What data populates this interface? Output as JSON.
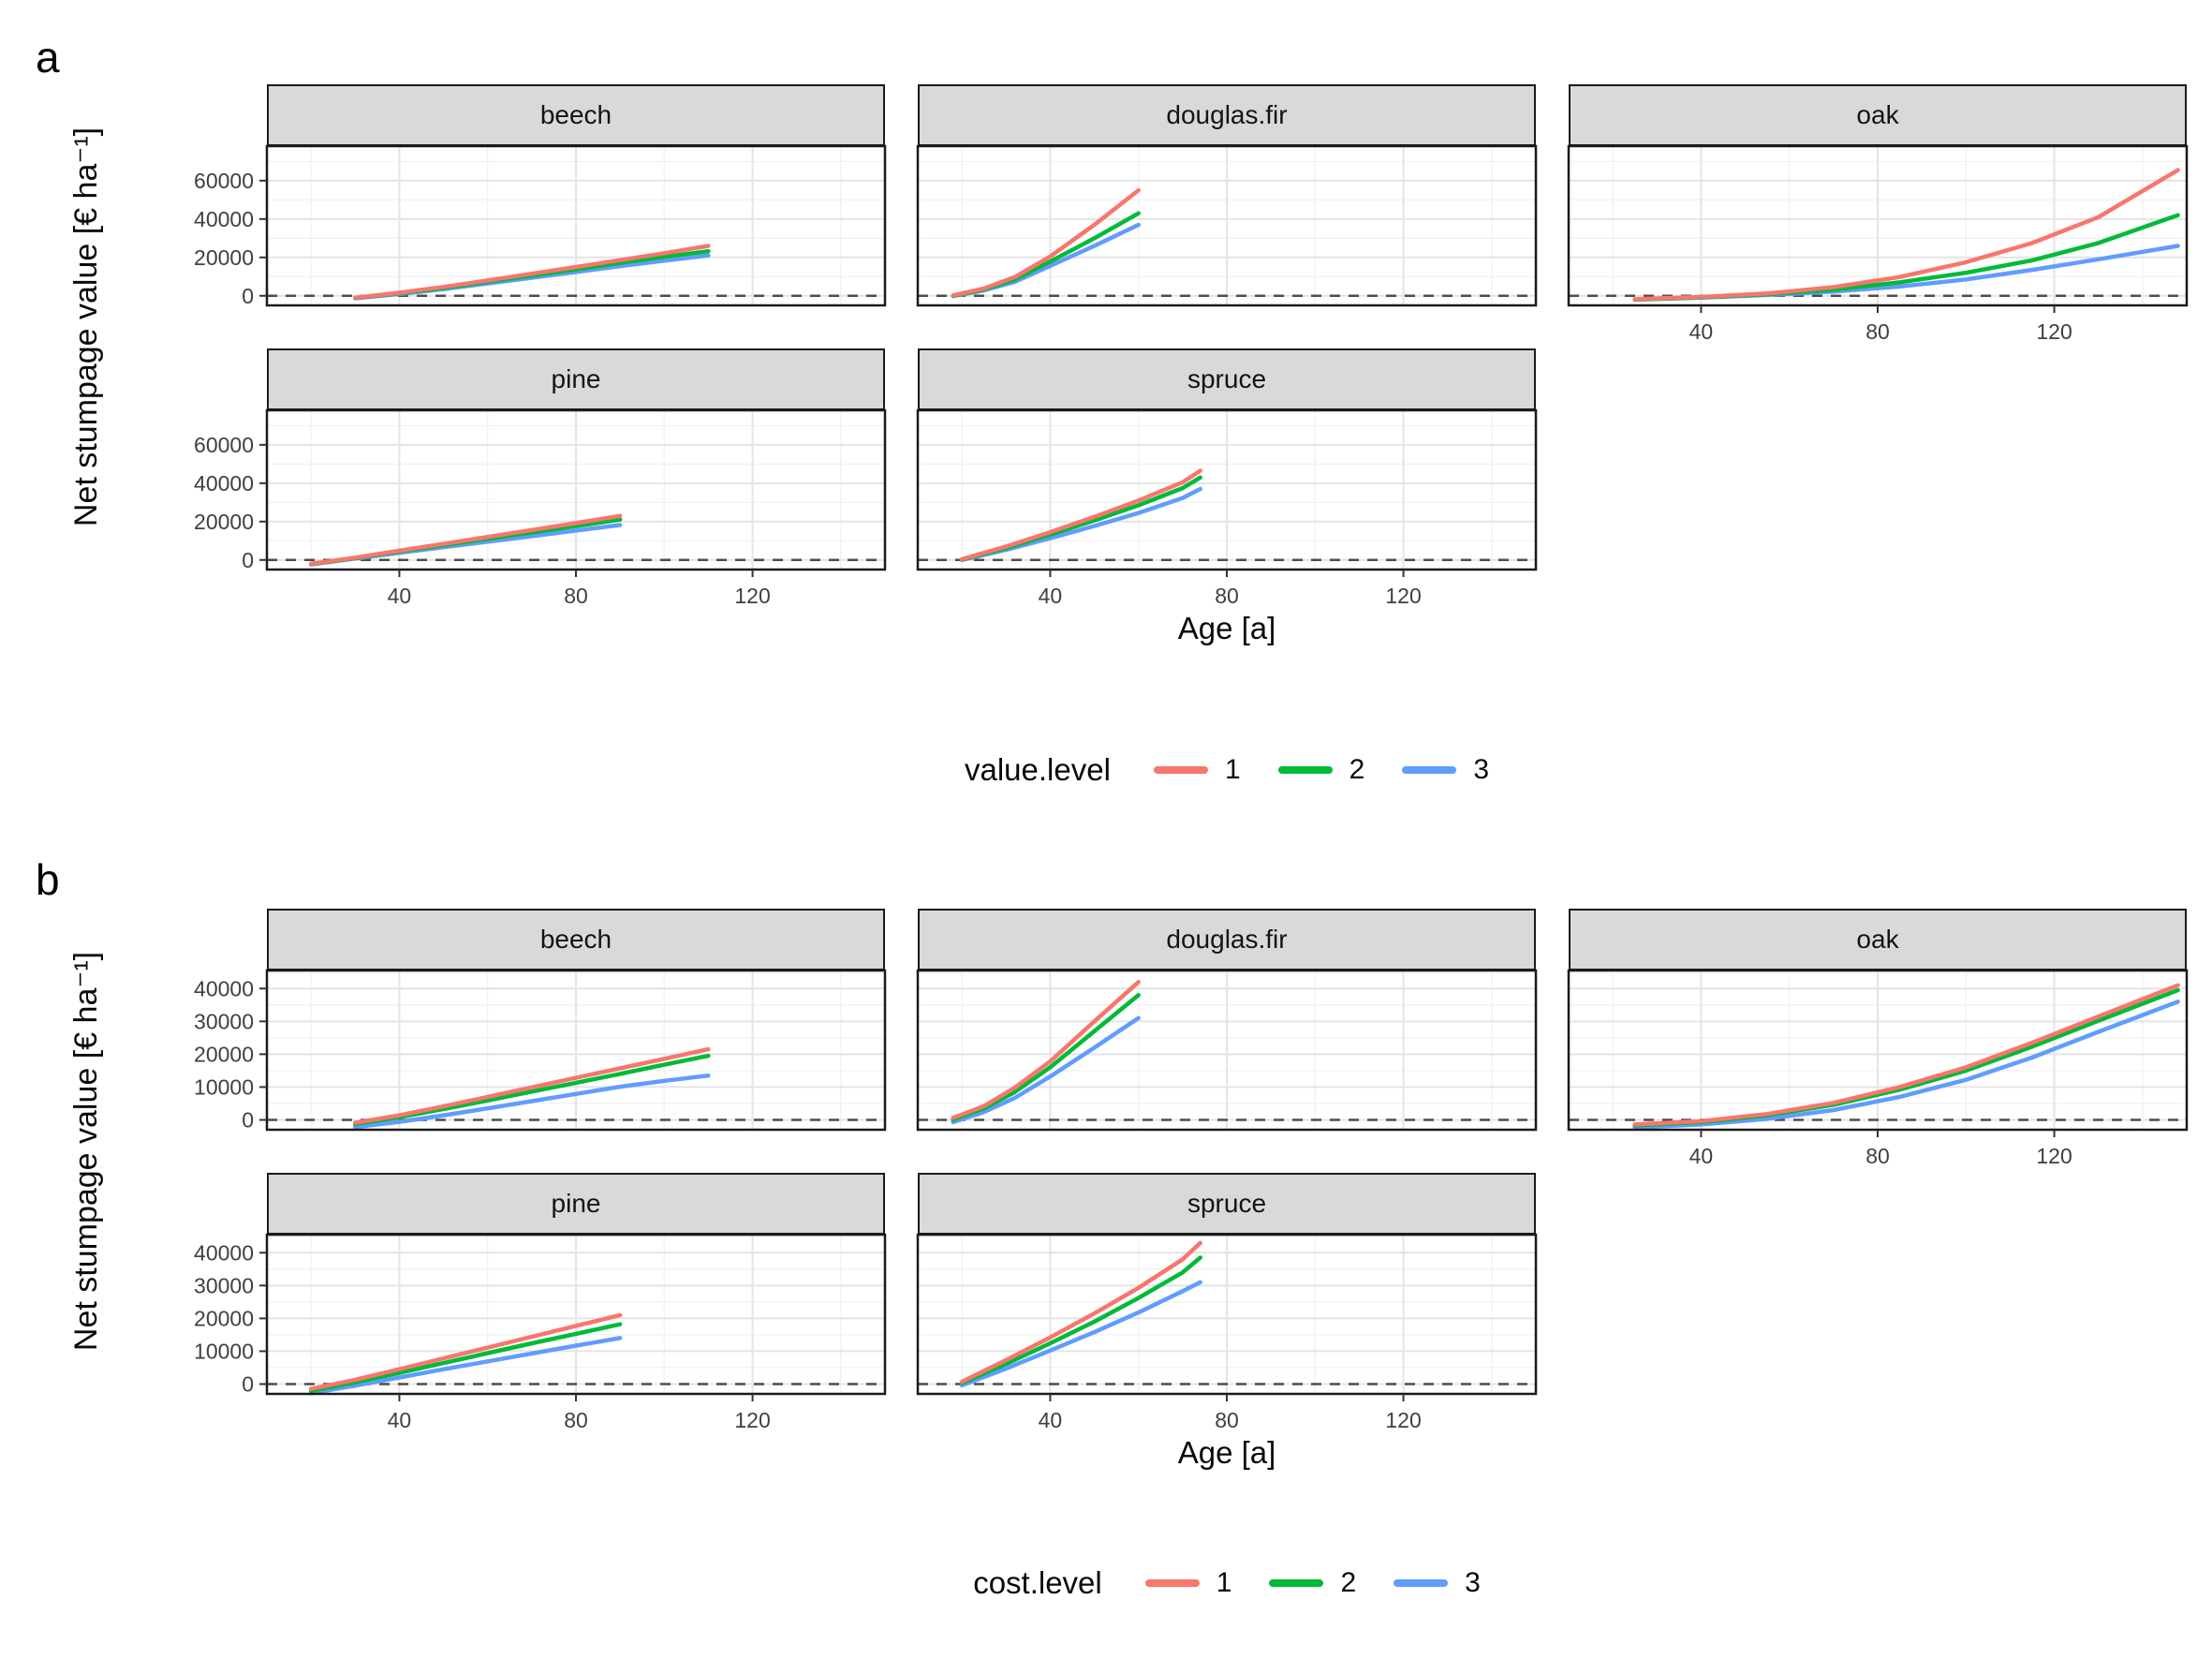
{
  "style": {
    "background": "#FFFFFF",
    "strip_bg": "#D9D9D9",
    "panel_border": "#1A1A1A",
    "grid_major": "#E4E4E4",
    "grid_minor": "#F1F1F1",
    "zero_line": "#4D4D4D",
    "tick_mark": "#333333",
    "tick_label": "#404040"
  },
  "chart_data": [
    {
      "type": "line",
      "tag": "a",
      "xlabel": "Age [a]",
      "ylabel": "Net stumpage value [€ ha⁻¹]",
      "legend": {
        "title": "value.level",
        "position": "bottom",
        "entries": [
          {
            "label": "1",
            "color": "#F8766D"
          },
          {
            "label": "2",
            "color": "#00BA38"
          },
          {
            "label": "3",
            "color": "#619CFF"
          }
        ]
      },
      "xlim": [
        10,
        150
      ],
      "ylim": [
        -5000,
        78000
      ],
      "xticks": [
        40,
        80,
        120
      ],
      "yticks": [
        0,
        20000,
        40000,
        60000
      ],
      "grid": true,
      "zero_dashed_line": 0,
      "facets": [
        {
          "name": "beech",
          "show_y_axis": true,
          "show_x_axis": false,
          "x": [
            30,
            40,
            50,
            60,
            70,
            80,
            90,
            100,
            110
          ],
          "series": [
            {
              "name": "1",
              "y": [
                -1000,
                1600,
                4600,
                8000,
                11500,
                15000,
                18600,
                22200,
                26000
              ]
            },
            {
              "name": "2",
              "y": [
                -1100,
                1300,
                4100,
                7300,
                10500,
                13800,
                17100,
                20300,
                23200
              ]
            },
            {
              "name": "3",
              "y": [
                -1300,
                900,
                3500,
                6400,
                9400,
                12400,
                15400,
                18300,
                21000
              ]
            }
          ]
        },
        {
          "name": "douglas.fir",
          "show_y_axis": false,
          "show_x_axis": false,
          "x": [
            18,
            25,
            32,
            40,
            50,
            60
          ],
          "series": [
            {
              "name": "1",
              "y": [
                200,
                3800,
                9800,
                20500,
                37000,
                55000
              ]
            },
            {
              "name": "2",
              "y": [
                0,
                3300,
                8500,
                17800,
                30000,
                43000
              ]
            },
            {
              "name": "3",
              "y": [
                -200,
                2800,
                7300,
                15600,
                26000,
                37000
              ]
            }
          ]
        },
        {
          "name": "oak",
          "show_y_axis": false,
          "show_x_axis": true,
          "x": [
            25,
            40,
            55,
            70,
            85,
            100,
            115,
            130,
            148
          ],
          "series": [
            {
              "name": "1",
              "y": [
                -1800,
                -600,
                1200,
                4500,
                9800,
                17500,
                27500,
                41000,
                65500
              ]
            },
            {
              "name": "2",
              "y": [
                -1900,
                -800,
                800,
                3200,
                7000,
                12000,
                18500,
                27500,
                42000
              ]
            },
            {
              "name": "3",
              "y": [
                -2000,
                -1000,
                400,
                2200,
                4800,
                8500,
                13500,
                19000,
                26000
              ]
            }
          ]
        },
        {
          "name": "pine",
          "show_y_axis": true,
          "show_x_axis": true,
          "x": [
            20,
            30,
            40,
            50,
            60,
            70,
            80,
            90
          ],
          "series": [
            {
              "name": "1",
              "y": [
                -2000,
                1200,
                4800,
                8400,
                12000,
                15600,
                19200,
                23000
              ]
            },
            {
              "name": "2",
              "y": [
                -2100,
                1000,
                4400,
                7700,
                11000,
                14300,
                17600,
                21000
              ]
            },
            {
              "name": "3",
              "y": [
                -2300,
                700,
                3700,
                6600,
                9500,
                12400,
                15300,
                18200
              ]
            }
          ]
        },
        {
          "name": "spruce",
          "show_y_axis": false,
          "show_x_axis": true,
          "x": [
            20,
            30,
            40,
            50,
            60,
            70,
            74
          ],
          "series": [
            {
              "name": "1",
              "y": [
                400,
                7000,
                14500,
                22500,
                31000,
                40500,
                46500
              ]
            },
            {
              "name": "2",
              "y": [
                200,
                6200,
                13200,
                20600,
                28500,
                37500,
                43000
              ]
            },
            {
              "name": "3",
              "y": [
                0,
                5300,
                11300,
                17700,
                24500,
                32300,
                37000
              ]
            }
          ]
        }
      ]
    },
    {
      "type": "line",
      "tag": "b",
      "xlabel": "Age [a]",
      "ylabel": "Net stumpage value [€ ha⁻¹]",
      "legend": {
        "title": "cost.level",
        "position": "bottom",
        "entries": [
          {
            "label": "1",
            "color": "#F8766D"
          },
          {
            "label": "2",
            "color": "#00BA38"
          },
          {
            "label": "3",
            "color": "#619CFF"
          }
        ]
      },
      "xlim": [
        10,
        150
      ],
      "ylim": [
        -3000,
        45500
      ],
      "xticks": [
        40,
        80,
        120
      ],
      "yticks": [
        0,
        10000,
        20000,
        30000,
        40000
      ],
      "grid": true,
      "zero_dashed_line": 0,
      "facets": [
        {
          "name": "beech",
          "show_y_axis": true,
          "show_x_axis": false,
          "x": [
            30,
            40,
            50,
            60,
            70,
            80,
            90,
            100,
            110
          ],
          "series": [
            {
              "name": "1",
              "y": [
                -900,
                1400,
                4100,
                7000,
                9900,
                12800,
                15700,
                18600,
                21500
              ]
            },
            {
              "name": "2",
              "y": [
                -1300,
                800,
                3300,
                5900,
                8600,
                11300,
                14000,
                16800,
                19500
              ]
            },
            {
              "name": "3",
              "y": [
                -2200,
                -600,
                1400,
                3500,
                5700,
                7900,
                10100,
                11900,
                13500
              ]
            }
          ]
        },
        {
          "name": "douglas.fir",
          "show_y_axis": false,
          "show_x_axis": false,
          "x": [
            18,
            25,
            32,
            40,
            50,
            60
          ],
          "series": [
            {
              "name": "1",
              "y": [
                600,
                4200,
                9800,
                17800,
                30000,
                42000
              ]
            },
            {
              "name": "2",
              "y": [
                100,
                3500,
                8500,
                16000,
                27000,
                38000
              ]
            },
            {
              "name": "3",
              "y": [
                -700,
                2400,
                6700,
                13200,
                22000,
                31000
              ]
            }
          ]
        },
        {
          "name": "oak",
          "show_y_axis": false,
          "show_x_axis": true,
          "x": [
            25,
            40,
            55,
            70,
            85,
            100,
            115,
            130,
            148
          ],
          "series": [
            {
              "name": "1",
              "y": [
                -1400,
                -400,
                1800,
                5200,
                10000,
                16000,
                23500,
                31500,
                41000
              ]
            },
            {
              "name": "2",
              "y": [
                -1700,
                -700,
                1400,
                4600,
                9200,
                15000,
                22300,
                30200,
                39500
              ]
            },
            {
              "name": "3",
              "y": [
                -2300,
                -1400,
                300,
                3000,
                7000,
                12200,
                19000,
                26800,
                36000
              ]
            }
          ]
        },
        {
          "name": "pine",
          "show_y_axis": true,
          "show_x_axis": true,
          "x": [
            20,
            30,
            40,
            50,
            60,
            70,
            80,
            90
          ],
          "series": [
            {
              "name": "1",
              "y": [
                -1500,
                1300,
                4500,
                7800,
                11100,
                14400,
                17700,
                21000
              ]
            },
            {
              "name": "2",
              "y": [
                -2100,
                500,
                3400,
                6400,
                9400,
                12400,
                15300,
                18200
              ]
            },
            {
              "name": "3",
              "y": [
                -2800,
                -500,
                2000,
                4500,
                6900,
                9300,
                11700,
                14000
              ]
            }
          ]
        },
        {
          "name": "spruce",
          "show_y_axis": false,
          "show_x_axis": true,
          "x": [
            20,
            30,
            40,
            50,
            60,
            70,
            74
          ],
          "series": [
            {
              "name": "1",
              "y": [
                700,
                7300,
                14200,
                21500,
                29300,
                38000,
                43000
              ]
            },
            {
              "name": "2",
              "y": [
                300,
                6100,
                12400,
                19000,
                26200,
                34000,
                38500
              ]
            },
            {
              "name": "3",
              "y": [
                -400,
                4700,
                10200,
                15800,
                21800,
                28300,
                31000
              ]
            }
          ]
        }
      ]
    }
  ]
}
